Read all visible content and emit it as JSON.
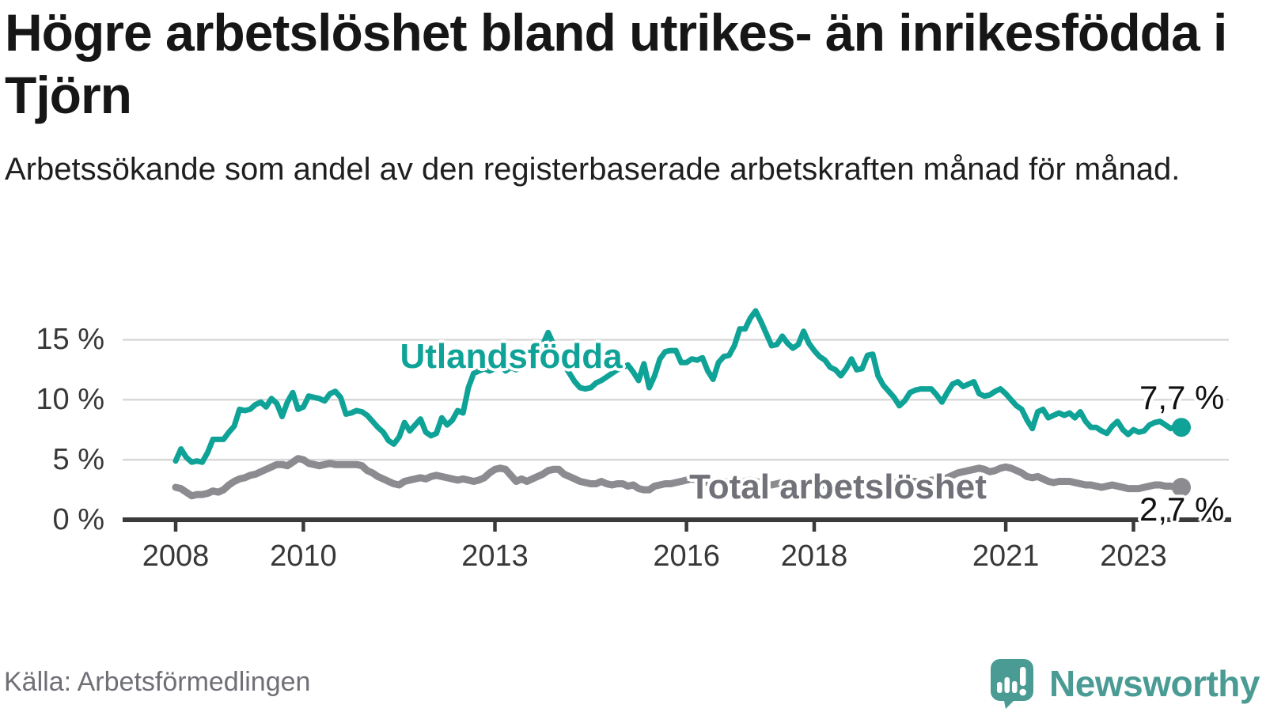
{
  "title": "Högre arbetslöshet bland utrikes- än inrikesfödda i Tjörn",
  "subtitle": "Arbetssökande som andel av den registerbaserade arbetskraften månad för månad.",
  "source": "Källa: Arbetsförmedlingen",
  "logo": {
    "text": "Newsworthy"
  },
  "chart_data": {
    "type": "line",
    "title": "Högre arbetslöshet bland utrikes- än inrikesfödda i Tjörn",
    "x_start": "2008-01",
    "x_end": "2023-10",
    "x_unit": "month",
    "ylim": [
      0,
      18.7
    ],
    "grid": "horizontal",
    "y_ticks": [
      {
        "value": 15,
        "label": "15 %"
      },
      {
        "value": 10,
        "label": "10 %"
      },
      {
        "value": 5,
        "label": "5 %"
      },
      {
        "value": 0,
        "label": "0 %"
      }
    ],
    "x_ticks": [
      {
        "year": 2008,
        "label": "2008"
      },
      {
        "year": 2010,
        "label": "2010"
      },
      {
        "year": 2013,
        "label": "2013"
      },
      {
        "year": 2016,
        "label": "2016"
      },
      {
        "year": 2018,
        "label": "2018"
      },
      {
        "year": 2021,
        "label": "2021"
      },
      {
        "year": 2023,
        "label": "2023"
      }
    ],
    "series": [
      {
        "name": "Utlandsfödda",
        "color": "#0fa297",
        "line_width": 7,
        "end_label": "7,7 %",
        "end_value": 7.7,
        "values": [
          4.9,
          5.9,
          5.2,
          4.8,
          4.9,
          4.8,
          5.6,
          6.7,
          6.7,
          6.7,
          7.3,
          7.8,
          9.2,
          9.1,
          9.2,
          9.6,
          9.8,
          9.4,
          10.1,
          9.7,
          8.6,
          9.8,
          10.6,
          9.2,
          9.4,
          10.3,
          10.2,
          10.1,
          9.9,
          10.5,
          10.7,
          10.2,
          8.8,
          8.9,
          9.1,
          9.0,
          8.7,
          8.2,
          7.7,
          7.3,
          6.6,
          6.3,
          6.9,
          8.1,
          7.4,
          7.9,
          8.4,
          7.3,
          7.0,
          7.2,
          8.5,
          7.9,
          8.3,
          9.1,
          8.9,
          11.0,
          12.2,
          12.4,
          12.6,
          12.4,
          12.6,
          12.9,
          12.4,
          12.7,
          12.5,
          12.8,
          13.1,
          13.4,
          13.8,
          14.6,
          15.6,
          14.6,
          13.6,
          12.9,
          12.2,
          11.5,
          11.0,
          10.9,
          11.0,
          11.4,
          11.6,
          11.9,
          12.2,
          12.5,
          12.7,
          12.9,
          12.3,
          11.6,
          13.0,
          11.0,
          12.0,
          13.4,
          14.0,
          14.1,
          14.1,
          13.1,
          13.1,
          13.4,
          13.3,
          13.5,
          12.4,
          11.7,
          13.1,
          13.6,
          13.7,
          14.5,
          15.9,
          15.9,
          16.8,
          17.4,
          16.5,
          15.5,
          14.5,
          14.6,
          15.3,
          14.7,
          14.3,
          14.6,
          15.7,
          14.7,
          14.1,
          13.6,
          13.3,
          12.7,
          12.5,
          12.0,
          12.6,
          13.4,
          12.5,
          12.6,
          13.7,
          13.8,
          12.0,
          11.2,
          10.7,
          10.2,
          9.5,
          9.9,
          10.6,
          10.8,
          10.9,
          10.9,
          10.9,
          10.4,
          9.8,
          10.6,
          11.3,
          11.5,
          11.1,
          11.3,
          11.5,
          10.5,
          10.3,
          10.4,
          10.7,
          10.9,
          10.5,
          10.0,
          9.5,
          9.2,
          8.3,
          7.6,
          9.0,
          9.2,
          8.5,
          8.7,
          8.9,
          8.7,
          8.9,
          8.5,
          9.0,
          8.2,
          7.7,
          7.7,
          7.4,
          7.2,
          7.8,
          8.2,
          7.5,
          7.1,
          7.5,
          7.3,
          7.4,
          7.9,
          8.1,
          8.2,
          7.9,
          7.6,
          7.8,
          7.7
        ]
      },
      {
        "name": "Total arbetslöshet",
        "color": "#8b8b90",
        "line_width": 9,
        "end_label": "2,7 %",
        "end_value": 2.7,
        "values": [
          2.7,
          2.6,
          2.3,
          2.0,
          2.1,
          2.1,
          2.2,
          2.4,
          2.3,
          2.5,
          2.9,
          3.2,
          3.4,
          3.5,
          3.7,
          3.8,
          4.0,
          4.2,
          4.4,
          4.6,
          4.6,
          4.5,
          4.8,
          5.1,
          5.0,
          4.7,
          4.6,
          4.5,
          4.6,
          4.7,
          4.6,
          4.6,
          4.6,
          4.6,
          4.6,
          4.5,
          4.1,
          3.9,
          3.6,
          3.4,
          3.2,
          3.0,
          2.9,
          3.2,
          3.3,
          3.4,
          3.5,
          3.4,
          3.6,
          3.7,
          3.6,
          3.5,
          3.4,
          3.3,
          3.4,
          3.3,
          3.2,
          3.3,
          3.5,
          3.9,
          4.2,
          4.3,
          4.2,
          3.7,
          3.2,
          3.4,
          3.2,
          3.4,
          3.6,
          3.8,
          4.1,
          4.2,
          4.2,
          3.8,
          3.6,
          3.4,
          3.2,
          3.1,
          3.0,
          3.0,
          3.2,
          3.0,
          2.9,
          3.0,
          3.0,
          2.8,
          2.9,
          2.6,
          2.5,
          2.5,
          2.8,
          2.9,
          3.0,
          3.0,
          3.1,
          3.2,
          3.3,
          3.4,
          3.3,
          3.2,
          3.1,
          3.0,
          3.1,
          3.2,
          3.1,
          3.0,
          3.1,
          3.2,
          3.3,
          3.2,
          3.1,
          3.0,
          2.9,
          3.0,
          3.1,
          3.0,
          2.9,
          3.0,
          3.1,
          3.1,
          3.0,
          2.9,
          2.9,
          2.8,
          2.8,
          2.9,
          3.0,
          2.9,
          2.8,
          2.9,
          3.0,
          3.0,
          3.1,
          3.0,
          3.0,
          3.1,
          3.0,
          3.1,
          3.2,
          3.2,
          3.1,
          3.2,
          3.3,
          3.3,
          3.4,
          3.5,
          3.7,
          3.9,
          4.0,
          4.1,
          4.2,
          4.3,
          4.2,
          4.0,
          4.1,
          4.3,
          4.4,
          4.3,
          4.1,
          3.9,
          3.6,
          3.5,
          3.6,
          3.4,
          3.2,
          3.1,
          3.2,
          3.2,
          3.2,
          3.1,
          3.0,
          2.9,
          2.9,
          2.8,
          2.7,
          2.8,
          2.9,
          2.8,
          2.7,
          2.6,
          2.6,
          2.6,
          2.7,
          2.8,
          2.9,
          2.9,
          2.8,
          2.8,
          2.7,
          2.7
        ]
      }
    ],
    "colors": {
      "grid": "#d8d8d8",
      "axis": "#3a3a3a",
      "accent_teal": "#0fa297",
      "accent_gray": "#8b8b90",
      "logo_teal": "#4b9b95"
    }
  }
}
